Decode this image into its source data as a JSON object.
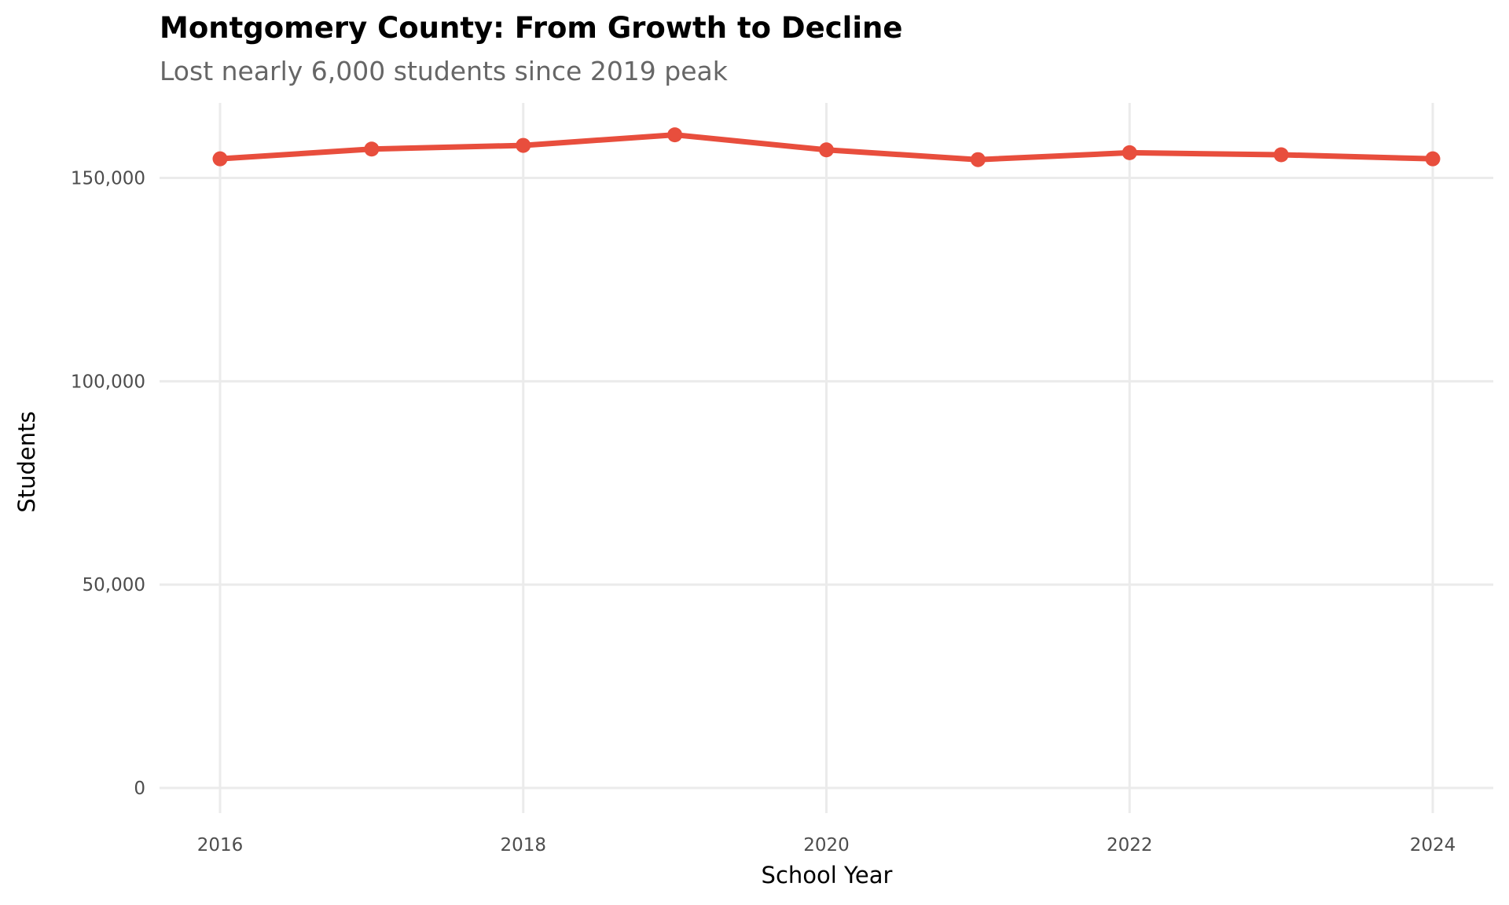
{
  "chart_data": {
    "type": "line",
    "title": "Montgomery County: From Growth to Decline",
    "subtitle": "Lost nearly 6,000 students since 2019 peak",
    "xlabel": "School Year",
    "ylabel": "Students",
    "x": [
      2016,
      2017,
      2018,
      2019,
      2020,
      2021,
      2022,
      2023,
      2024
    ],
    "series": [
      {
        "name": "Students",
        "color": "#e84e3d",
        "values": [
          154700,
          157100,
          158000,
          160600,
          156900,
          154500,
          156200,
          155700,
          154700
        ]
      }
    ],
    "xticks": [
      "2016",
      "2018",
      "2020",
      "2022",
      "2024"
    ],
    "yticks": [
      "0",
      "50,000",
      "100,000",
      "150,000"
    ],
    "ytick_values": [
      0,
      50000,
      100000,
      150000
    ],
    "xtick_values": [
      2016,
      2018,
      2020,
      2022,
      2024
    ],
    "xlim": [
      2015.8,
      2024.2
    ],
    "ylim": [
      -6000,
      168000
    ],
    "grid": true,
    "legend": "none"
  }
}
